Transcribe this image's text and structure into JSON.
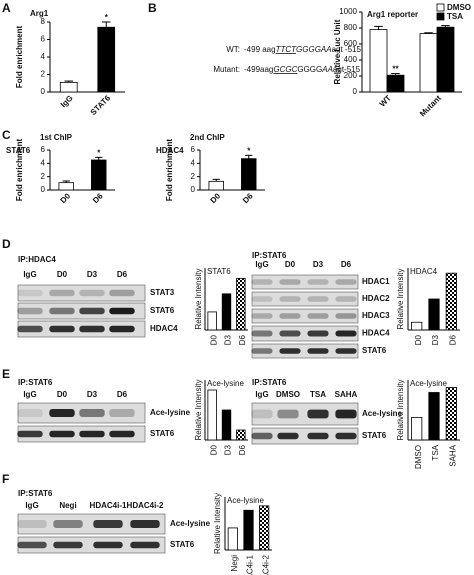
{
  "panel_letters": [
    "A",
    "B",
    "C",
    "D",
    "E",
    "F"
  ],
  "sequence_panel": {
    "rows": [
      {
        "label": "WT:",
        "parts": [
          {
            "text": "-499 aag"
          },
          {
            "text": "TTCT",
            "style": "underline-italic"
          },
          {
            "text": "GGGGAA",
            "style": "italic"
          },
          {
            "text": "agt -515"
          }
        ]
      },
      {
        "label": "Mutant:",
        "parts": [
          {
            "text": "-499aag"
          },
          {
            "text": "GCGC",
            "style": "underline-italic"
          },
          {
            "text": "GGGG"
          },
          {
            "text": "AA",
            "style": "italic"
          },
          {
            "text": "agt-515"
          }
        ]
      }
    ]
  },
  "chart_data": [
    {
      "type": "bar",
      "title": "Arg1",
      "y_label": "Fold enrichment",
      "categories": [
        "IgG",
        "STAT6"
      ],
      "values": [
        1.1,
        7.4
      ],
      "errors": [
        0.15,
        0.6
      ],
      "significance": [
        null,
        "*"
      ],
      "fills": [
        "#ffffff",
        "#000000"
      ],
      "ylim": [
        0,
        8
      ],
      "yticks": [
        0,
        2,
        4,
        6,
        8
      ]
    },
    {
      "type": "bar",
      "title": "Arg1 reporter",
      "y_label": "Relative Luc Unit",
      "categories": [
        "WT",
        "Mutant"
      ],
      "legend": "top-right",
      "series": [
        {
          "name": "DMSO",
          "color": "#ffffff",
          "values": [
            780,
            730
          ],
          "errors": [
            40,
            10
          ],
          "significance": [
            null,
            null
          ]
        },
        {
          "name": "TSA",
          "color": "#000000",
          "values": [
            210,
            810
          ],
          "errors": [
            20,
            20
          ],
          "significance": [
            "**",
            null
          ]
        }
      ],
      "ylim": [
        0,
        1000
      ],
      "yticks": [
        0,
        200,
        400,
        600,
        800,
        1000
      ]
    },
    {
      "type": "bar",
      "title": "1st ChIP",
      "subtitle": "STAT6",
      "y_label": "Fold enrichment",
      "categories": [
        "D0",
        "D6"
      ],
      "values": [
        1.1,
        4.5
      ],
      "errors": [
        0.25,
        0.4
      ],
      "significance": [
        null,
        "*"
      ],
      "fills": [
        "#ffffff",
        "#000000"
      ],
      "ylim": [
        0,
        6
      ],
      "yticks": [
        0,
        2,
        4,
        6
      ]
    },
    {
      "type": "bar",
      "title": "2nd ChIP",
      "subtitle": "HDAC4",
      "y_label": "Fold enrichment",
      "categories": [
        "D0",
        "D6"
      ],
      "values": [
        1.3,
        4.7
      ],
      "errors": [
        0.3,
        0.5
      ],
      "significance": [
        null,
        "*"
      ],
      "fills": [
        "#ffffff",
        "#000000"
      ],
      "ylim": [
        0,
        6
      ],
      "yticks": [
        0,
        2,
        4,
        6
      ]
    },
    {
      "type": "bar",
      "title": "STAT6",
      "y_label": "Relative Intensity",
      "categories": [
        "D0",
        "D3",
        "D6"
      ],
      "values": [
        0.35,
        0.7,
        1.0
      ],
      "fills": [
        "#ffffff",
        "#000000",
        "checker"
      ],
      "ylim": [
        0,
        1.2
      ]
    },
    {
      "type": "bar",
      "title": "HDAC4",
      "y_label": "Relative Intensity",
      "categories": [
        "D0",
        "D3",
        "D6"
      ],
      "values": [
        0.15,
        0.6,
        1.1
      ],
      "fills": [
        "#ffffff",
        "#000000",
        "checker"
      ],
      "ylim": [
        0,
        1.2
      ]
    },
    {
      "type": "bar",
      "title": "Ace-lysine",
      "y_label": "Relative Intensity",
      "categories": [
        "D0",
        "D3",
        "D6"
      ],
      "values": [
        1.0,
        0.6,
        0.2
      ],
      "fills": [
        "#ffffff",
        "#000000",
        "checker"
      ],
      "ylim": [
        0,
        1.2
      ]
    },
    {
      "type": "bar",
      "title": "Ace-lysine",
      "y_label": "Relative Intensity",
      "categories": [
        "DMSO",
        "TSA",
        "SAHA"
      ],
      "values": [
        0.45,
        0.95,
        1.05
      ],
      "fills": [
        "#ffffff",
        "#000000",
        "checker"
      ],
      "ylim": [
        0,
        1.2
      ]
    },
    {
      "type": "bar",
      "title": "Ace-lysine",
      "y_label": "Relative Intensity",
      "categories": [
        "Negi",
        "HDAC4i-1",
        "HDAC4i-2"
      ],
      "values": [
        0.5,
        0.9,
        1.0
      ],
      "fills": [
        "#ffffff",
        "#000000",
        "checker"
      ],
      "ylim": [
        0,
        1.2
      ]
    }
  ],
  "blots": [
    {
      "title": "IP:HDAC4",
      "lanes": [
        "IgG",
        "D0",
        "D3",
        "D6"
      ],
      "rows": [
        "STAT3",
        "STAT6",
        "HDAC4"
      ]
    },
    {
      "title": "IP:STAT6",
      "lanes": [
        "IgG",
        "D0",
        "D3",
        "D6"
      ],
      "rows": [
        "HDAC1",
        "HDAC2",
        "HDAC3",
        "HDAC4",
        "STAT6"
      ]
    },
    {
      "title": "IP:STAT6",
      "lanes": [
        "IgG",
        "D0",
        "D3",
        "D6"
      ],
      "rows": [
        "Ace-lysine",
        "STAT6"
      ]
    },
    {
      "title": "IP:STAT6",
      "lanes": [
        "IgG",
        "DMSO",
        "TSA",
        "SAHA"
      ],
      "rows": [
        "Ace-lysine",
        "STAT6"
      ]
    },
    {
      "title": "IP:STAT6",
      "lanes": [
        "IgG",
        "Negi",
        "HDAC4i-1",
        "HDAC4i-2"
      ],
      "rows": [
        "Ace-lysine",
        "STAT6"
      ]
    }
  ]
}
